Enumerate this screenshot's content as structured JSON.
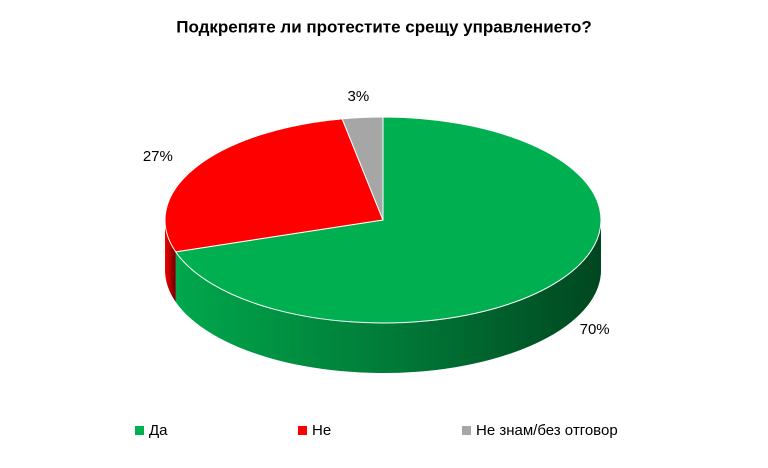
{
  "chart_data": {
    "type": "pie",
    "title": "Подкрепяте ли протестите срещу управлението?",
    "categories": [
      "Да",
      "Не",
      "Не знам/без отговор"
    ],
    "values": [
      70,
      27,
      3
    ],
    "value_labels": [
      "70%",
      "27%",
      "3%"
    ],
    "colors": [
      "#00b050",
      "#ff0000",
      "#a6a6a6"
    ],
    "legend": "bottom"
  }
}
